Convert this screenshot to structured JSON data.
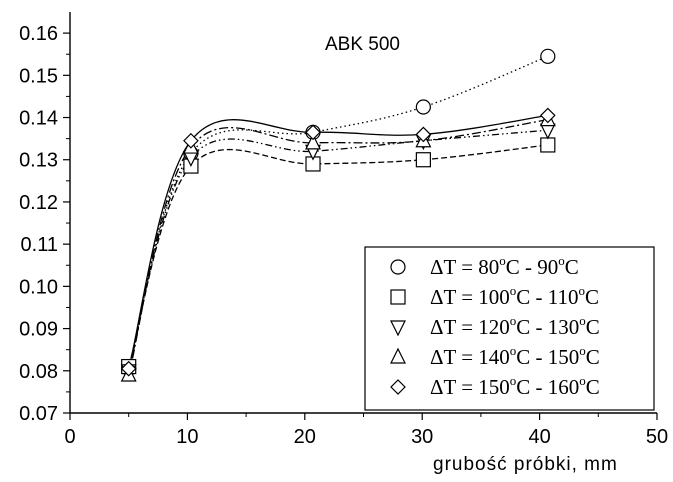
{
  "chart_data": {
    "type": "line",
    "title": "ABK 500",
    "xlabel": "grubość próbki, mm",
    "ylabel": "",
    "xlim": [
      0,
      50
    ],
    "ylim": [
      0.07,
      0.165
    ],
    "x_ticks": [
      "0",
      "10",
      "20",
      "30",
      "40",
      "50"
    ],
    "y_ticks": [
      "0.07",
      "0.08",
      "0.09",
      "0.10",
      "0.11",
      "0.12",
      "0.13",
      "0.14",
      "0.15",
      "0.16"
    ],
    "grid": false,
    "legend_position": "bottom-right",
    "series": [
      {
        "name": "ΔT = 80°C - 90°C",
        "name_parts": {
          "a": "ΔT = 80",
          "b": "C - 90",
          "c": "C",
          "sup": "o"
        },
        "marker": "circle",
        "line_style": "dotted",
        "x": [
          5,
          10.3,
          20.7,
          30.1,
          40.7
        ],
        "y": [
          0.0805,
          0.1315,
          0.1365,
          0.1425,
          0.1545
        ]
      },
      {
        "name": "ΔT = 100°C - 110°C",
        "name_parts": {
          "a": "ΔT = 100",
          "b": "C - 110",
          "c": "C",
          "sup": "o"
        },
        "marker": "square",
        "line_style": "dashed",
        "x": [
          5,
          10.3,
          20.7,
          30.1,
          40.7
        ],
        "y": [
          0.081,
          0.1285,
          0.129,
          0.13,
          0.1335
        ]
      },
      {
        "name": "ΔT = 120°C - 130°C",
        "name_parts": {
          "a": "ΔT = 120",
          "b": "C - 130",
          "c": "C",
          "sup": "o"
        },
        "marker": "triangle-down",
        "line_style": "dash-dot-dot",
        "x": [
          5,
          10.3,
          20.7,
          30.1,
          40.7
        ],
        "y": [
          0.08,
          0.1305,
          0.132,
          0.1345,
          0.137
        ]
      },
      {
        "name": "ΔT = 140°C - 150°C",
        "name_parts": {
          "a": "ΔT = 140",
          "b": "C - 150",
          "c": "C",
          "sup": "o"
        },
        "marker": "triangle-up",
        "line_style": "dash-dot",
        "x": [
          5,
          10.3,
          20.7,
          30.1,
          40.7
        ],
        "y": [
          0.079,
          0.133,
          0.134,
          0.1345,
          0.1395
        ]
      },
      {
        "name": "ΔT = 150°C - 160°C",
        "name_parts": {
          "a": "ΔT = 150",
          "b": "C - 160",
          "c": "C",
          "sup": "o"
        },
        "marker": "diamond",
        "line_style": "solid",
        "x": [
          5,
          10.3,
          20.7,
          30.1,
          40.7
        ],
        "y": [
          0.0805,
          0.1345,
          0.1365,
          0.136,
          0.1405
        ]
      }
    ]
  }
}
